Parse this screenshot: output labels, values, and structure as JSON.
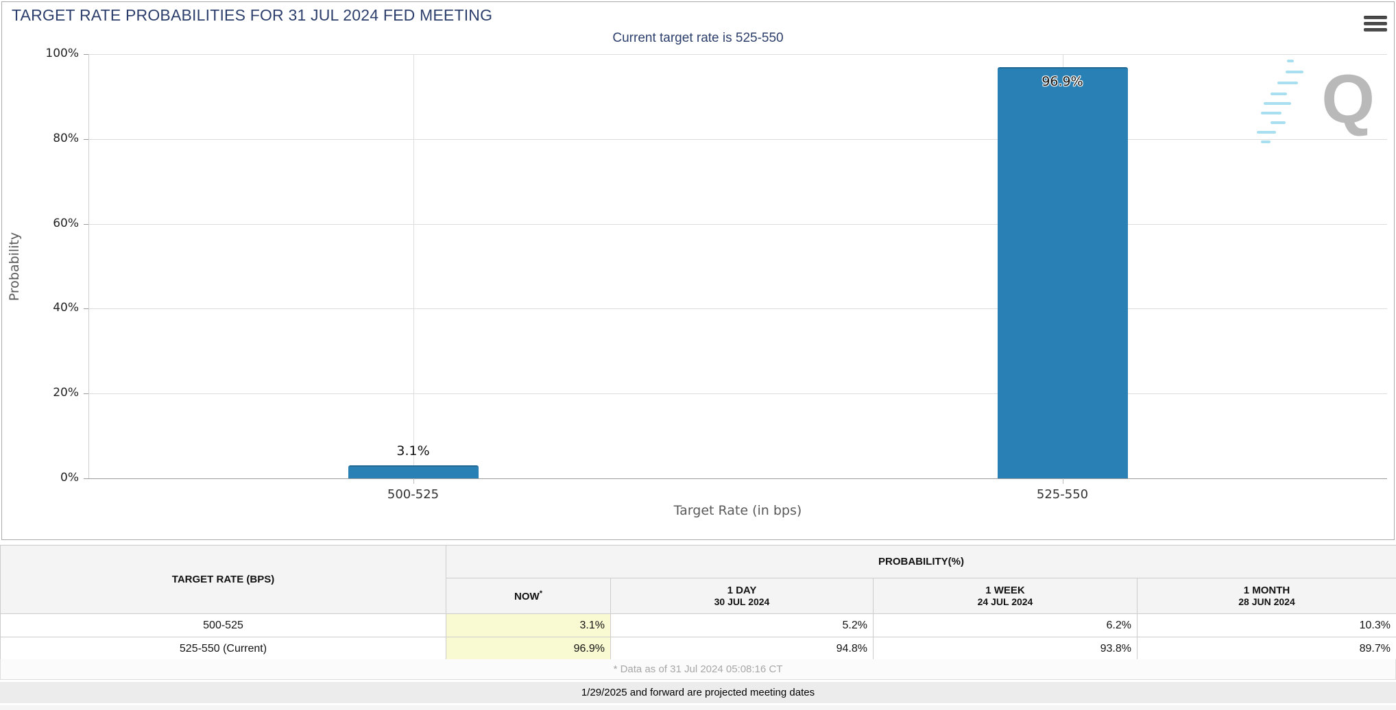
{
  "header": {
    "title": "TARGET RATE PROBABILITIES FOR 31 JUL 2024 FED MEETING"
  },
  "chart_data": {
    "type": "bar",
    "title": "Current target rate is 525-550",
    "categories": [
      "500-525",
      "525-550"
    ],
    "values": [
      3.1,
      96.9
    ],
    "value_labels": [
      "3.1%",
      "96.9%"
    ],
    "xlabel": "Target Rate (in bps)",
    "ylabel": "Probability",
    "ylim": [
      0,
      100
    ],
    "ytick_values": [
      0,
      20,
      40,
      60,
      80,
      100
    ],
    "ytick_labels": [
      "0%",
      "20%",
      "40%",
      "60%",
      "80%",
      "100%"
    ],
    "grid": "on",
    "bar_color": "#2980b5"
  },
  "watermark": {
    "letter": "Q"
  },
  "table": {
    "col1_header": "TARGET RATE (BPS)",
    "group_header": "PROBABILITY(%)",
    "columns": [
      {
        "label": "NOW",
        "sup": "*",
        "sub": ""
      },
      {
        "label": "1 DAY",
        "sub": "30 JUL 2024"
      },
      {
        "label": "1 WEEK",
        "sub": "24 JUL 2024"
      },
      {
        "label": "1 MONTH",
        "sub": "28 JUN 2024"
      }
    ],
    "rows": [
      {
        "rate": "500-525",
        "values": [
          "3.1%",
          "5.2%",
          "6.2%",
          "10.3%"
        ]
      },
      {
        "rate": "525-550 (Current)",
        "values": [
          "96.9%",
          "94.8%",
          "93.8%",
          "89.7%"
        ]
      }
    ],
    "footnote": "* Data as of 31 Jul 2024 05:08:16 CT",
    "projection_note": "1/29/2025 and forward are projected meeting dates"
  },
  "colors": {
    "bar": "#2980b5",
    "title_navy": "#2c3e6b",
    "now_highlight": "#fafad2"
  }
}
